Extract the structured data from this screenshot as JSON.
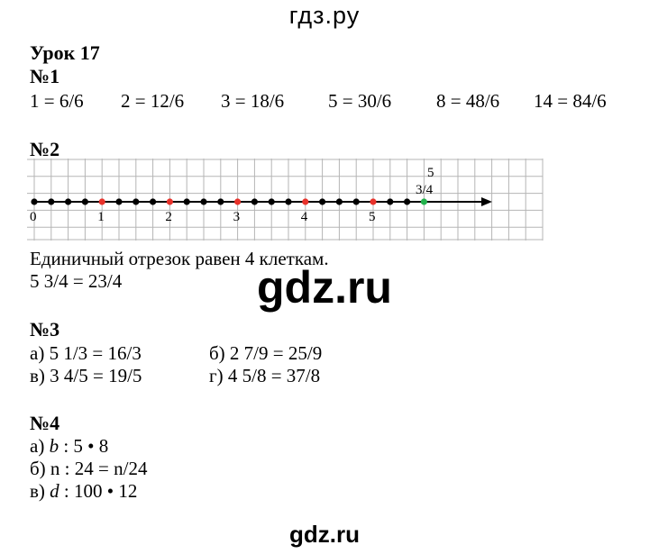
{
  "site_header": "гдз.ру",
  "site_footer": "gdz.ru",
  "watermark": "gdz.ru",
  "lesson_title": "Урок 17",
  "task1": {
    "heading": "№1",
    "items": [
      "1 = 6/6",
      "2 = 12/6",
      "3 = 18/6",
      "5 = 30/6",
      "8 = 48/6",
      "14 = 84/6"
    ]
  },
  "task2": {
    "heading": "№2",
    "axis_labels": [
      "0",
      "1",
      "2",
      "3",
      "4",
      "5"
    ],
    "point_label_top": "5",
    "point_label_bottom": "3/4",
    "unit_segment_cells": 4,
    "highlight_points": [
      1,
      2,
      3,
      4,
      5
    ],
    "green_point": 5.75,
    "dot_step": 0.25,
    "dot_range": [
      0,
      5.75
    ],
    "colors": {
      "red": "#e8322b",
      "green": "#22b24c",
      "grid": "#b5b5b5"
    },
    "sentence": "Единичный отрезок равен 4 клеткам.",
    "answer": "5 3/4 = 23/4"
  },
  "task3": {
    "heading": "№3",
    "a": "а) 5 1/3 = 16/3",
    "b": "б) 2 7/9 = 25/9",
    "v": "в) 3 4/5 = 19/5",
    "g": "г) 4 5/8 = 37/8"
  },
  "task4": {
    "heading": "№4",
    "a_prefix": "а) ",
    "a_var": "b",
    "a_rest": " : 5 • 8",
    "b": "б) n : 24 = n/24",
    "v_prefix": "в) ",
    "v_var": "d",
    "v_rest": " : 100 • 12"
  }
}
